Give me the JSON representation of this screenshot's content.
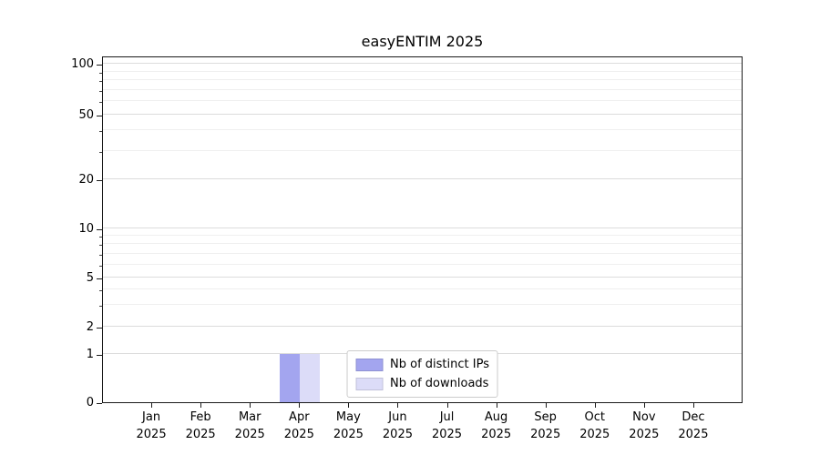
{
  "title": "easyENTIM 2025",
  "chart_data": {
    "type": "bar",
    "title": "easyENTIM 2025",
    "categories": [
      "Jan 2025",
      "Feb 2025",
      "Mar 2025",
      "Apr 2025",
      "May 2025",
      "Jun 2025",
      "Jul 2025",
      "Aug 2025",
      "Sep 2025",
      "Oct 2025",
      "Nov 2025",
      "Dec 2025"
    ],
    "series": [
      {
        "name": "Nb of distinct IPs",
        "color": "#a3a5ef",
        "values": [
          0,
          0,
          0,
          1,
          0,
          0,
          0,
          0,
          0,
          0,
          0,
          0
        ]
      },
      {
        "name": "Nb of downloads",
        "color": "#dcdcf8",
        "values": [
          0,
          0,
          0,
          1,
          0,
          0,
          0,
          0,
          0,
          0,
          0,
          0
        ]
      }
    ],
    "xlabel": "",
    "ylabel": "",
    "yscale": "symlog",
    "ylim": [
      0,
      100
    ],
    "yticks": [
      0,
      1,
      2,
      5,
      10,
      20,
      50,
      100
    ],
    "grid": true,
    "legend_entries": [
      "Nb of distinct IPs",
      "Nb of downloads"
    ],
    "legend_position": "inside-bottom-center"
  }
}
